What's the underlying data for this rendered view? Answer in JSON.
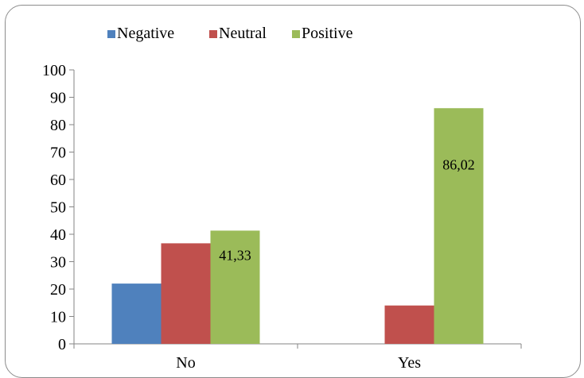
{
  "chart_data": {
    "type": "bar",
    "categories": [
      "No",
      "Yes"
    ],
    "series": [
      {
        "name": "Negative",
        "values": [
          22,
          null
        ],
        "color": "#4f81bd"
      },
      {
        "name": "Neutral",
        "values": [
          36.7,
          14
        ],
        "color": "#c0504d"
      },
      {
        "name": "Positive",
        "values": [
          41.33,
          86.02
        ],
        "color": "#9bbb59"
      }
    ],
    "data_labels": [
      {
        "series": "Positive",
        "category": "No",
        "text": "41,33"
      },
      {
        "series": "Positive",
        "category": "Yes",
        "text": "86,02"
      }
    ],
    "ylim": [
      0,
      100
    ],
    "yticks": [
      "0",
      "10",
      "20",
      "30",
      "40",
      "50",
      "60",
      "70",
      "80",
      "90",
      "100"
    ],
    "legend_position": "top",
    "grid": false
  }
}
